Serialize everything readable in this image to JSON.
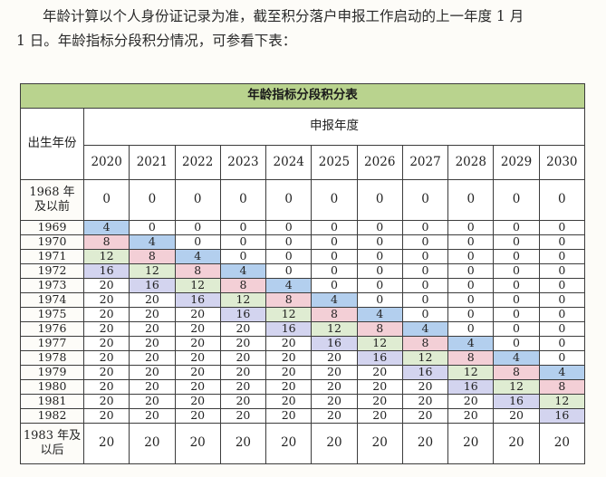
{
  "paragraph": {
    "line1": "年龄计算以个人身份证记录为准，截至积分落户申报工作启动的上一年度 1 月",
    "line2": "1 日。年龄指标分段积分情况，可参看下表："
  },
  "table": {
    "title": "年龄指标分段积分表",
    "apply_year_header": "申报年度",
    "birth_year_header": "出生年份",
    "years": [
      "2020",
      "2021",
      "2022",
      "2023",
      "2024",
      "2025",
      "2026",
      "2027",
      "2028",
      "2029",
      "2030"
    ],
    "rows": [
      {
        "birth": "1968 年\n及以前",
        "values": [
          "0",
          "0",
          "0",
          "0",
          "0",
          "0",
          "0",
          "0",
          "0",
          "0",
          "0"
        ]
      },
      {
        "birth": "1969",
        "values": [
          "4",
          "0",
          "0",
          "0",
          "0",
          "0",
          "0",
          "0",
          "0",
          "0",
          "0"
        ]
      },
      {
        "birth": "1970",
        "values": [
          "8",
          "4",
          "0",
          "0",
          "0",
          "0",
          "0",
          "0",
          "0",
          "0",
          "0"
        ]
      },
      {
        "birth": "1971",
        "values": [
          "12",
          "8",
          "4",
          "0",
          "0",
          "0",
          "0",
          "0",
          "0",
          "0",
          "0"
        ]
      },
      {
        "birth": "1972",
        "values": [
          "16",
          "12",
          "8",
          "4",
          "0",
          "0",
          "0",
          "0",
          "0",
          "0",
          "0"
        ]
      },
      {
        "birth": "1973",
        "values": [
          "20",
          "16",
          "12",
          "8",
          "4",
          "0",
          "0",
          "0",
          "0",
          "0",
          "0"
        ]
      },
      {
        "birth": "1974",
        "values": [
          "20",
          "20",
          "16",
          "12",
          "8",
          "4",
          "0",
          "0",
          "0",
          "0",
          "0"
        ]
      },
      {
        "birth": "1975",
        "values": [
          "20",
          "20",
          "20",
          "16",
          "12",
          "8",
          "4",
          "0",
          "0",
          "0",
          "0"
        ]
      },
      {
        "birth": "1976",
        "values": [
          "20",
          "20",
          "20",
          "20",
          "16",
          "12",
          "8",
          "4",
          "0",
          "0",
          "0"
        ]
      },
      {
        "birth": "1977",
        "values": [
          "20",
          "20",
          "20",
          "20",
          "20",
          "16",
          "12",
          "8",
          "4",
          "0",
          "0"
        ]
      },
      {
        "birth": "1978",
        "values": [
          "20",
          "20",
          "20",
          "20",
          "20",
          "20",
          "16",
          "12",
          "8",
          "4",
          "0"
        ]
      },
      {
        "birth": "1979",
        "values": [
          "20",
          "20",
          "20",
          "20",
          "20",
          "20",
          "20",
          "16",
          "12",
          "8",
          "4"
        ]
      },
      {
        "birth": "1980",
        "values": [
          "20",
          "20",
          "20",
          "20",
          "20",
          "20",
          "20",
          "20",
          "16",
          "12",
          "8"
        ]
      },
      {
        "birth": "1981",
        "values": [
          "20",
          "20",
          "20",
          "20",
          "20",
          "20",
          "20",
          "20",
          "20",
          "16",
          "12"
        ]
      },
      {
        "birth": "1982",
        "values": [
          "20",
          "20",
          "20",
          "20",
          "20",
          "20",
          "20",
          "20",
          "20",
          "20",
          "16"
        ]
      },
      {
        "birth": "1983 年及\n以后",
        "values": [
          "20",
          "20",
          "20",
          "20",
          "20",
          "20",
          "20",
          "20",
          "20",
          "20",
          "20"
        ]
      }
    ],
    "colors": {
      "title_bg": "#b9d38e",
      "score_4": "#b3cfee",
      "score_8": "#f3cfd6",
      "score_12": "#dfecd2",
      "score_16": "#d3d4ef"
    }
  }
}
